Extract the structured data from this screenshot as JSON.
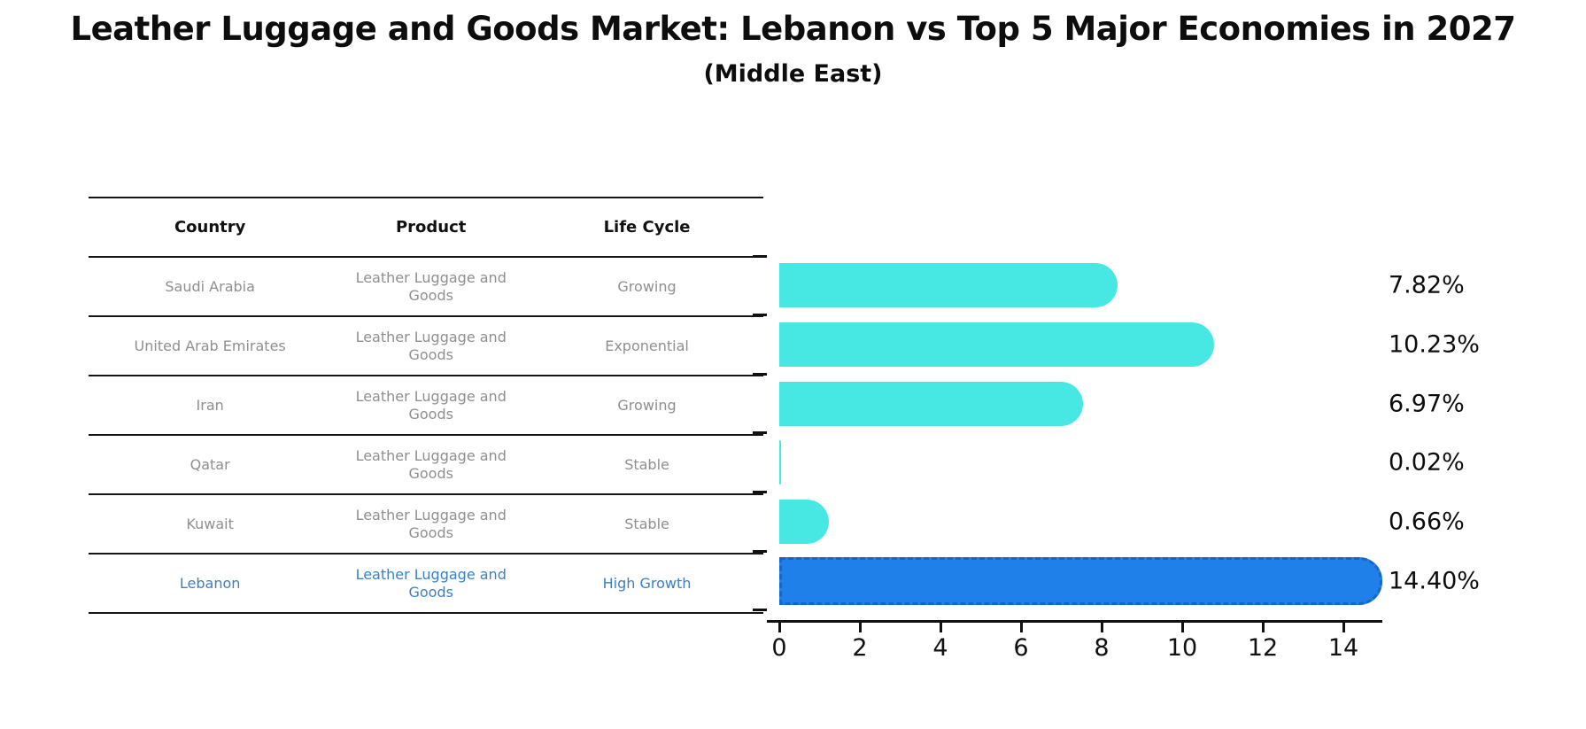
{
  "title": "Leather Luggage and Goods Market: Lebanon vs Top 5 Major Economies in 2027",
  "subtitle": "(Middle East)",
  "table": {
    "headers": [
      "Country",
      "Product",
      "Life Cycle"
    ],
    "rows": [
      {
        "country": "Saudi Arabia",
        "product": "Leather Luggage and Goods",
        "life_cycle": "Growing"
      },
      {
        "country": "United Arab Emirates",
        "product": "Leather Luggage and Goods",
        "life_cycle": "Exponential"
      },
      {
        "country": "Iran",
        "product": "Leather Luggage and Goods",
        "life_cycle": "Growing"
      },
      {
        "country": "Qatar",
        "product": "Leather Luggage and Goods",
        "life_cycle": "Stable"
      },
      {
        "country": "Kuwait",
        "product": "Leather Luggage and Goods",
        "life_cycle": "Stable"
      },
      {
        "country": "Lebanon",
        "product": "Leather Luggage and Goods",
        "life_cycle": "High Growth"
      }
    ],
    "highlight_row": 5
  },
  "chart_data": {
    "type": "bar",
    "orientation": "horizontal",
    "title": "Leather Luggage and Goods Market: Lebanon vs Top 5 Major Economies in 2027 (Middle East)",
    "categories": [
      "Saudi Arabia",
      "United Arab Emirates",
      "Iran",
      "Qatar",
      "Kuwait",
      "Lebanon"
    ],
    "values": [
      7.82,
      10.23,
      6.97,
      0.02,
      0.66,
      14.4
    ],
    "value_labels": [
      "7.82%",
      "10.23%",
      "6.97%",
      "0.02%",
      "0.66%",
      "14.40%"
    ],
    "xlabel": "",
    "ylabel": "",
    "xlim": [
      0,
      15.2
    ],
    "xticks": [
      0,
      2,
      4,
      6,
      8,
      10,
      12,
      14
    ],
    "grid": false,
    "legend": false,
    "bar_color": "#47E8E3",
    "highlight_index": 5,
    "highlight_bar_color": "#1E80E8",
    "highlight_border_color": "#1565CE",
    "highlight_text_color": "#3B80C4"
  }
}
